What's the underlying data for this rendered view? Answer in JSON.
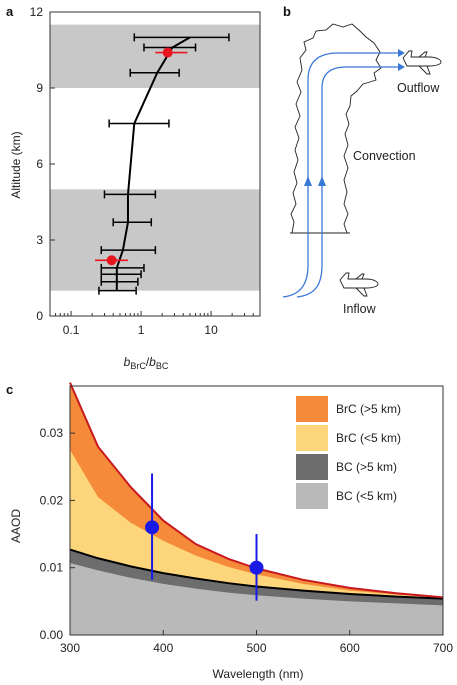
{
  "chart_data": [
    {
      "panel": "a",
      "type": "scatter",
      "ylabel": "Altitude (km)",
      "xlabel_main": "b",
      "xlabel_sub1": "BrC",
      "xlabel_sep": "/",
      "xlabel_sub2": "BC",
      "xscale": "log",
      "xlim": [
        0.05,
        50
      ],
      "ylim": [
        0,
        12
      ],
      "xticks": [
        0.1,
        1,
        10
      ],
      "xtick_labels": [
        "0.1",
        "1",
        "10"
      ],
      "yticks": [
        0,
        3,
        6,
        9,
        12
      ],
      "ytick_labels": [
        "0",
        "3",
        "6",
        "9",
        "12"
      ],
      "shaded_bands": [
        [
          1,
          5
        ],
        [
          9,
          11.5
        ]
      ],
      "profile": [
        {
          "y": 1.0,
          "x": 0.45,
          "xerr": [
            0.25,
            0.85
          ]
        },
        {
          "y": 1.35,
          "x": 0.45,
          "xerr": [
            0.27,
            0.9
          ]
        },
        {
          "y": 1.65,
          "x": 0.45,
          "xerr": [
            0.27,
            1.0
          ]
        },
        {
          "y": 1.9,
          "x": 0.45,
          "xerr": [
            0.27,
            1.1
          ]
        },
        {
          "y": 2.6,
          "x": 0.55,
          "xerr": [
            0.27,
            1.6
          ]
        },
        {
          "y": 3.7,
          "x": 0.65,
          "xerr": [
            0.4,
            1.4
          ]
        },
        {
          "y": 4.8,
          "x": 0.65,
          "xerr": [
            0.3,
            1.6
          ]
        },
        {
          "y": 7.6,
          "x": 0.8,
          "xerr": [
            0.35,
            2.5
          ]
        },
        {
          "y": 9.6,
          "x": 1.7,
          "xerr": [
            0.7,
            3.5
          ]
        },
        {
          "y": 10.6,
          "x": 2.8,
          "xerr": [
            1.1,
            6.0
          ]
        },
        {
          "y": 11.0,
          "x": 5.0,
          "xerr": [
            0.8,
            18.0
          ]
        }
      ],
      "red_points": [
        {
          "y": 2.2,
          "x": 0.38,
          "xerr": [
            0.22,
            0.65
          ]
        },
        {
          "y": 10.4,
          "x": 2.4,
          "xerr": [
            1.6,
            4.6
          ]
        }
      ]
    },
    {
      "panel": "c",
      "type": "area",
      "xlabel": "Wavelength (nm)",
      "ylabel": "AAOD",
      "xlim": [
        300,
        700
      ],
      "ylim": [
        0,
        0.037
      ],
      "xticks": [
        300,
        400,
        500,
        600,
        700
      ],
      "xtick_labels": [
        "300",
        "400",
        "500",
        "600",
        "700"
      ],
      "yticks": [
        0,
        0.01,
        0.02,
        0.03
      ],
      "ytick_labels": [
        "0.00",
        "0.01",
        "0.02",
        "0.03"
      ],
      "x": [
        300,
        330,
        365,
        400,
        435,
        470,
        500,
        550,
        600,
        650,
        700
      ],
      "series": [
        {
          "name": "BC (<5 km)",
          "values": [
            0.0107,
            0.0096,
            0.0085,
            0.0076,
            0.0069,
            0.0063,
            0.0059,
            0.0054,
            0.005,
            0.0047,
            0.0044
          ]
        },
        {
          "name": "BC (>5 km)",
          "values": [
            0.0127,
            0.0114,
            0.0102,
            0.0092,
            0.0084,
            0.0077,
            0.0072,
            0.0066,
            0.0061,
            0.0057,
            0.0054
          ]
        },
        {
          "name": "BrC (<5 km)",
          "values": [
            0.0275,
            0.0205,
            0.0167,
            0.014,
            0.0118,
            0.0101,
            0.009,
            0.0076,
            0.0066,
            0.006,
            0.0055
          ]
        },
        {
          "name": "BrC (>5 km)",
          "values": [
            0.0375,
            0.028,
            0.022,
            0.017,
            0.0135,
            0.0113,
            0.0099,
            0.0082,
            0.007,
            0.0062,
            0.0056
          ]
        }
      ],
      "markers": [
        {
          "x": 388,
          "y": 0.016,
          "yerr": [
            0.0082,
            0.024
          ]
        },
        {
          "x": 500,
          "y": 0.01,
          "yerr": [
            0.0051,
            0.015
          ]
        }
      ],
      "legend_position": "top-right"
    }
  ],
  "diagram": {
    "panel": "b",
    "labels": {
      "outflow": "Outflow",
      "convection": "Convection",
      "inflow": "Inflow"
    }
  },
  "panel_letters": {
    "a": "a",
    "b": "b",
    "c": "c"
  },
  "colors": {
    "band": "#c8c8c8",
    "profile": "#000000",
    "red_marker": "#e8141e",
    "brc_high": "#f58a3a",
    "brc_low": "#fdd57a",
    "bc_high": "#6d6d6d",
    "bc_low": "#b9b9b9",
    "total_line": "#c8191e",
    "blue_marker": "#1a1ae6",
    "flow_arrow": "#3a78d8"
  }
}
